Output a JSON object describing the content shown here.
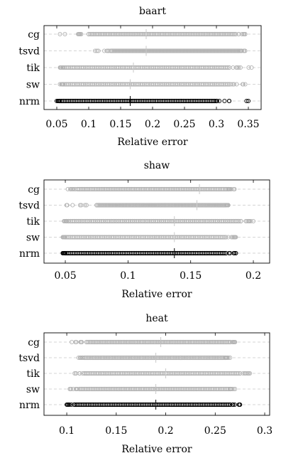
{
  "colors": {
    "method": "#b3b3b3",
    "nrm": "#000000",
    "grid": "#c8c8c8",
    "frame": "#000000"
  },
  "chart_data": [
    {
      "type": "scatter",
      "title": "baart",
      "xlabel": "Relative error",
      "categories": [
        "cg",
        "tsvd",
        "tik",
        "sw",
        "nrm"
      ],
      "xlim": [
        0.03,
        0.37
      ],
      "xticks": [
        0.05,
        0.1,
        0.15,
        0.2,
        0.25,
        0.3,
        0.35
      ],
      "xticklabels": [
        "0.05",
        "0.1",
        "0.15",
        "0.2",
        "0.25",
        "0.3",
        "0.35"
      ],
      "grid": "horizontal dashed",
      "series": [
        {
          "category": "cg",
          "min": 0.055,
          "max": 0.345,
          "dense_min": 0.1,
          "dense_max": 0.33,
          "median": 0.19
        },
        {
          "category": "tsvd",
          "min": 0.11,
          "max": 0.345,
          "dense_min": 0.135,
          "dense_max": 0.335,
          "median": 0.19
        },
        {
          "category": "tik",
          "min": 0.055,
          "max": 0.355,
          "dense_min": 0.06,
          "dense_max": 0.32,
          "median": 0.17
        },
        {
          "category": "sw",
          "min": 0.055,
          "max": 0.345,
          "dense_min": 0.06,
          "dense_max": 0.32,
          "median": 0.165
        },
        {
          "category": "nrm",
          "min": 0.05,
          "max": 0.35,
          "dense_min": 0.055,
          "dense_max": 0.3,
          "median": 0.165
        }
      ]
    },
    {
      "type": "scatter",
      "title": "shaw",
      "xlabel": "Relative error",
      "categories": [
        "cg",
        "tsvd",
        "tik",
        "sw",
        "nrm"
      ],
      "xlim": [
        0.033,
        0.213
      ],
      "xticks": [
        0.05,
        0.1,
        0.15,
        0.2
      ],
      "xticklabels": [
        "0.05",
        "0.1",
        "0.15",
        "0.2"
      ],
      "grid": "horizontal dashed",
      "series": [
        {
          "category": "cg",
          "min": 0.052,
          "max": 0.185,
          "dense_min": 0.06,
          "dense_max": 0.18,
          "median": 0.157
        },
        {
          "category": "tsvd",
          "min": 0.051,
          "max": 0.18,
          "dense_min": 0.075,
          "dense_max": 0.178,
          "median": 0.155
        },
        {
          "category": "tik",
          "min": 0.049,
          "max": 0.2,
          "dense_min": 0.051,
          "dense_max": 0.19,
          "median": 0.137
        },
        {
          "category": "sw",
          "min": 0.048,
          "max": 0.186,
          "dense_min": 0.05,
          "dense_max": 0.178,
          "median": 0.137
        },
        {
          "category": "nrm",
          "min": 0.048,
          "max": 0.186,
          "dense_min": 0.05,
          "dense_max": 0.178,
          "median": 0.137
        }
      ]
    },
    {
      "type": "scatter",
      "title": "heat",
      "xlabel": "Relative error",
      "categories": [
        "cg",
        "tsvd",
        "tik",
        "sw",
        "nrm"
      ],
      "xlim": [
        0.077,
        0.305
      ],
      "xticks": [
        0.1,
        0.15,
        0.2,
        0.25,
        0.3
      ],
      "xticklabels": [
        "0.1",
        "0.15",
        "0.2",
        "0.25",
        "0.3"
      ],
      "grid": "horizontal dashed",
      "series": [
        {
          "category": "cg",
          "min": 0.105,
          "max": 0.27,
          "dense_min": 0.12,
          "dense_max": 0.265,
          "median": 0.195
        },
        {
          "category": "tsvd",
          "min": 0.112,
          "max": 0.265,
          "dense_min": 0.118,
          "dense_max": 0.26,
          "median": 0.19
        },
        {
          "category": "tik",
          "min": 0.108,
          "max": 0.285,
          "dense_min": 0.118,
          "dense_max": 0.275,
          "median": 0.2
        },
        {
          "category": "sw",
          "min": 0.103,
          "max": 0.27,
          "dense_min": 0.113,
          "dense_max": 0.265,
          "median": 0.19
        },
        {
          "category": "nrm",
          "min": 0.1,
          "max": 0.275,
          "dense_min": 0.108,
          "dense_max": 0.265,
          "median": 0.19
        }
      ]
    }
  ]
}
